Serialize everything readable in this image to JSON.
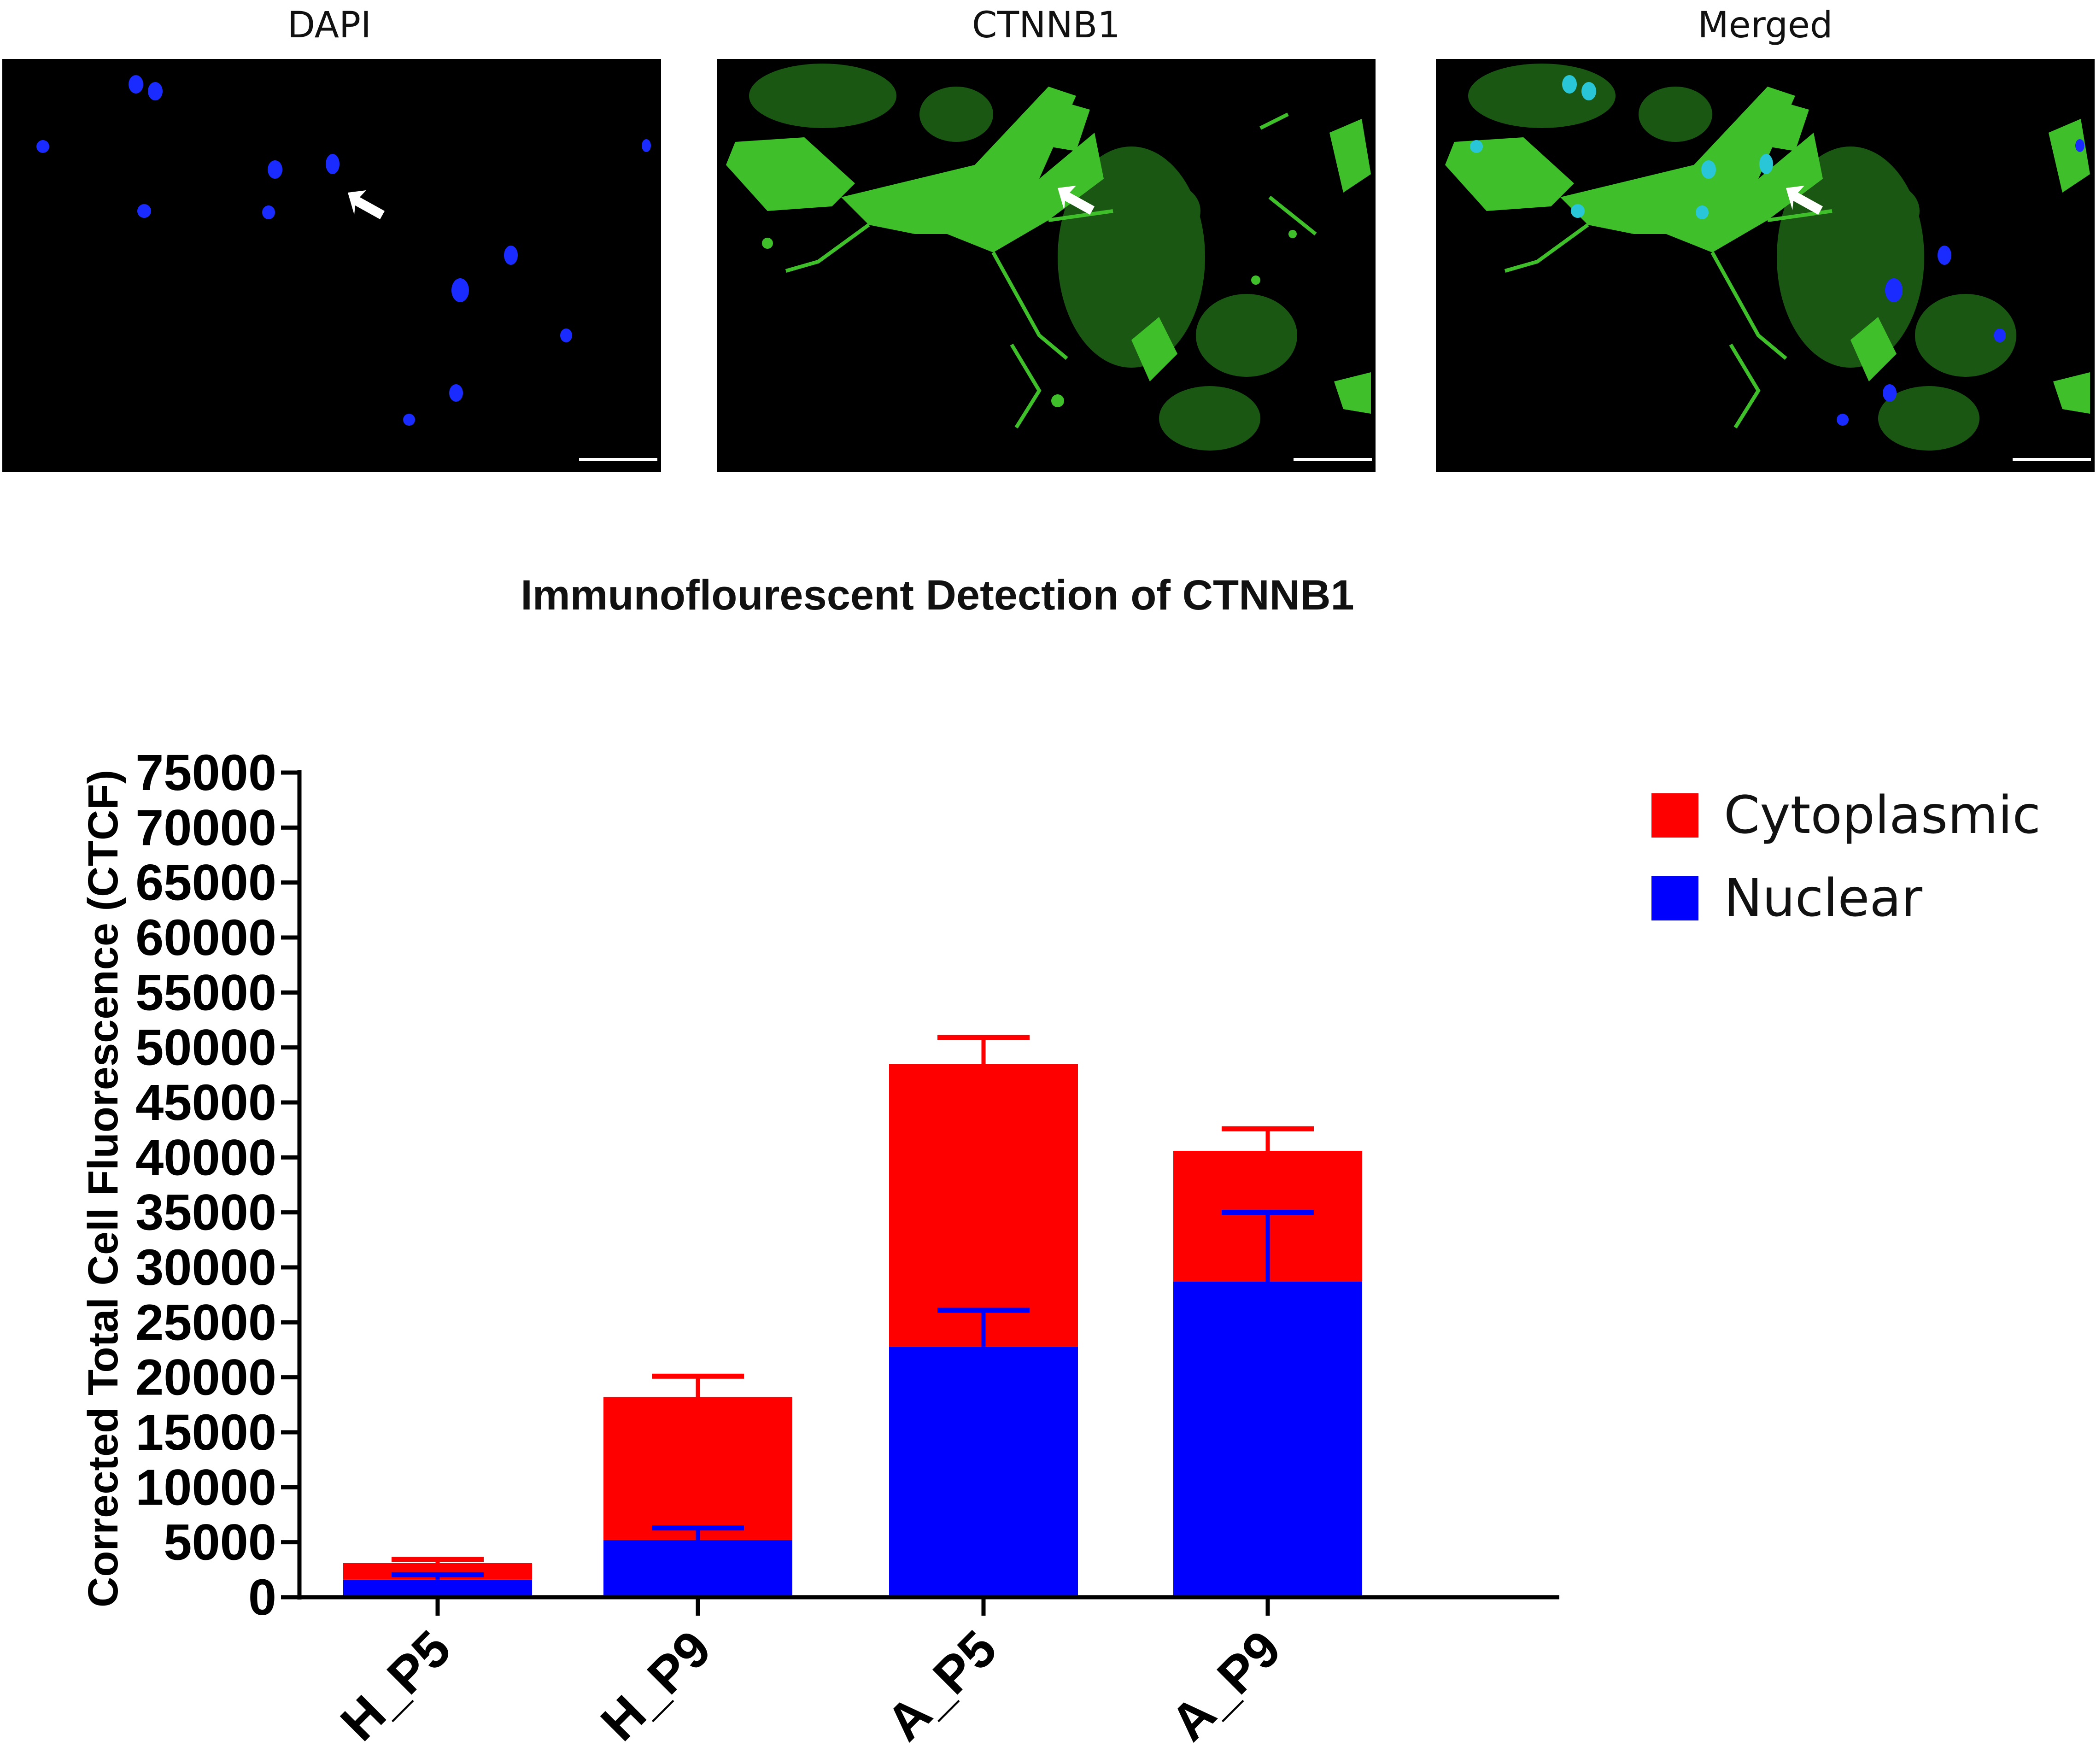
{
  "panels": [
    {
      "title": "DAPI"
    },
    {
      "title": "CTNNB1"
    },
    {
      "title": "Merged"
    }
  ],
  "colors": {
    "cytoplasmic": "#ff0000",
    "nuclear": "#0000ff",
    "dapi": "#1a2bff",
    "ctnnb1": "#3fc02a",
    "axis": "#000000"
  },
  "chart_data": {
    "type": "bar",
    "stacked": true,
    "title": "Immunoflourescent Detection of CTNNB1",
    "xlabel": "",
    "ylabel": "Corrected Total Cell Fluorescence (CTCF)",
    "ylim": [
      0,
      75000
    ],
    "yticks": [
      0,
      5000,
      10000,
      15000,
      20000,
      25000,
      30000,
      35000,
      40000,
      45000,
      50000,
      55000,
      60000,
      65000,
      70000,
      75000
    ],
    "categories": [
      "H_P5",
      "H_P9",
      "A_P5",
      "A_P9"
    ],
    "series": [
      {
        "name": "Nuclear",
        "values": [
          1600,
          5200,
          22800,
          28700
        ],
        "errors": [
          450,
          1100,
          3300,
          6300
        ]
      },
      {
        "name": "Cytoplasmic",
        "values": [
          1500,
          13000,
          25700,
          11900
        ],
        "errors": [
          350,
          1900,
          2400,
          2000
        ]
      }
    ],
    "legend_position": "top-right",
    "grid": false
  }
}
